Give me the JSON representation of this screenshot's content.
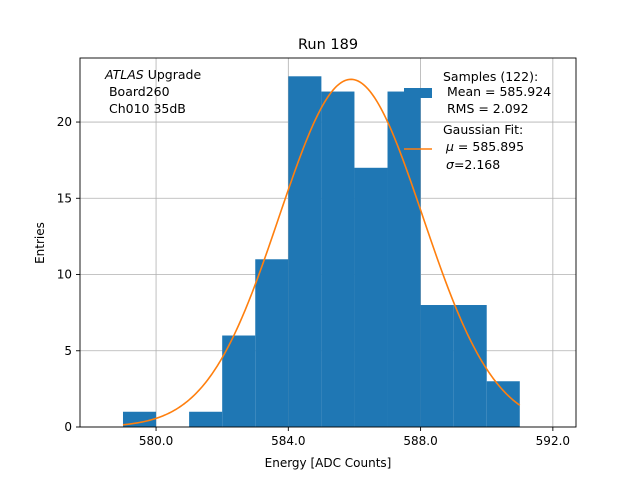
{
  "chart_data": {
    "type": "bar",
    "title": "Run 189",
    "xlabel": "Energy [ADC Counts]",
    "ylabel": "Entries",
    "xlim": [
      577.7,
      592.7
    ],
    "ylim": [
      0,
      24.2
    ],
    "grid": true,
    "x_ticks": [
      580.0,
      584.0,
      588.0,
      592.0
    ],
    "x_tick_labels": [
      "580.0",
      "584.0",
      "588.0",
      "592.0"
    ],
    "y_ticks": [
      0,
      5,
      10,
      15,
      20
    ],
    "y_tick_labels": [
      "0",
      "5",
      "10",
      "15",
      "20"
    ],
    "histogram": {
      "bin_edges": [
        579,
        580,
        581,
        582,
        583,
        584,
        585,
        586,
        587,
        588,
        589,
        590,
        591
      ],
      "counts": [
        1,
        0,
        1,
        6,
        11,
        23,
        22,
        17,
        22,
        8,
        8,
        3
      ],
      "color": "#1f77b4"
    },
    "fit": {
      "type": "gaussian",
      "amplitude": 22.8,
      "mu": 585.895,
      "sigma": 2.168,
      "x_range": [
        579,
        591
      ],
      "color": "#ff7f0e"
    },
    "annotation": {
      "line1_italic": "ATLAS",
      "line1_rest": " Upgrade",
      "line2": " Board260",
      "line3": " Ch010 35dB"
    },
    "legend": {
      "location": "upper right",
      "samples_title": "Samples (122):",
      "samples_mean": " Mean = 585.924",
      "samples_rms": " RMS = 2.092",
      "fit_title": "Gaussian Fit:",
      "fit_mu_symbol": "μ",
      "fit_mu_rest": " = 585.895",
      "fit_sigma_symbol": "σ",
      "fit_sigma_rest": "=2.168"
    }
  }
}
